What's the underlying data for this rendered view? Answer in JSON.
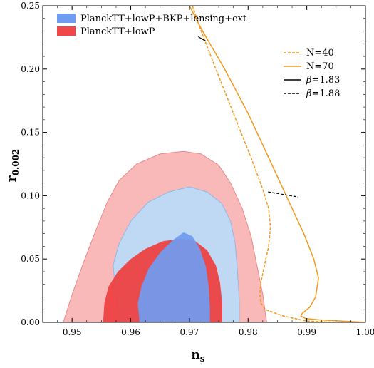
{
  "chart_data": {
    "type": "contour",
    "xlabel": "n_s",
    "ylabel": "r_0.002",
    "xlabel_main": "n",
    "xlabel_sub": "s",
    "ylabel_main": "r",
    "ylabel_sub": "0.002",
    "xlim": [
      0.945,
      1.0
    ],
    "ylim": [
      0.0,
      0.25
    ],
    "x_ticks": [
      0.95,
      0.96,
      0.97,
      0.98,
      0.99,
      1.0
    ],
    "x_tick_labels": [
      "0.95",
      "0.96",
      "0.97",
      "0.98",
      "0.99",
      "1.00"
    ],
    "y_ticks": [
      0.0,
      0.05,
      0.1,
      0.15,
      0.2,
      0.25
    ],
    "y_tick_labels": [
      "0.00",
      "0.05",
      "0.10",
      "0.15",
      "0.20",
      "0.25"
    ],
    "contour_legend": [
      {
        "label": "PlanckTT+lowP+BKP+lensing+ext",
        "color": "#6f9bf0"
      },
      {
        "label": "PlanckTT+lowP",
        "color": "#f04848"
      }
    ],
    "line_legend": [
      {
        "label": "N=40",
        "color": "#f39a1e",
        "dash": "dashed"
      },
      {
        "label": "N=70",
        "color": "#f39a1e",
        "dash": "solid"
      },
      {
        "label": "β=1.83",
        "label_greek": "β",
        "label_rest": "=1.83",
        "color": "#000000",
        "dash": "solid"
      },
      {
        "label": "β=1.88",
        "label_greek": "β",
        "label_rest": "=1.88",
        "color": "#000000",
        "dash": "dashed"
      }
    ],
    "contours": [
      {
        "name": "PlanckTT+lowP",
        "level": "95%",
        "color": "#f9b5b5",
        "stroke": "#e88a8a",
        "points": [
          [
            0.9485,
            0.0
          ],
          [
            0.95,
            0.022
          ],
          [
            0.952,
            0.048
          ],
          [
            0.954,
            0.072
          ],
          [
            0.956,
            0.095
          ],
          [
            0.958,
            0.112
          ],
          [
            0.961,
            0.125
          ],
          [
            0.965,
            0.133
          ],
          [
            0.969,
            0.135
          ],
          [
            0.972,
            0.133
          ],
          [
            0.975,
            0.124
          ],
          [
            0.977,
            0.11
          ],
          [
            0.979,
            0.09
          ],
          [
            0.9805,
            0.068
          ],
          [
            0.9815,
            0.045
          ],
          [
            0.9825,
            0.022
          ],
          [
            0.983,
            0.005
          ],
          [
            0.9832,
            0.0
          ]
        ]
      },
      {
        "name": "PlanckTT+lowP+BKP+lensing+ext",
        "level": "95%",
        "color": "#bcd9f5",
        "stroke": "#8fb8e8",
        "points": [
          [
            0.958,
            0.0
          ],
          [
            0.9575,
            0.02
          ],
          [
            0.957,
            0.045
          ],
          [
            0.958,
            0.062
          ],
          [
            0.96,
            0.08
          ],
          [
            0.963,
            0.095
          ],
          [
            0.9665,
            0.103
          ],
          [
            0.97,
            0.107
          ],
          [
            0.973,
            0.103
          ],
          [
            0.9755,
            0.094
          ],
          [
            0.977,
            0.08
          ],
          [
            0.9778,
            0.062
          ],
          [
            0.9782,
            0.04
          ],
          [
            0.9785,
            0.018
          ],
          [
            0.9785,
            0.0
          ]
        ]
      },
      {
        "name": "PlanckTT+lowP",
        "level": "68%",
        "color": "#ee3e3e",
        "points": [
          [
            0.9553,
            0.0
          ],
          [
            0.9555,
            0.015
          ],
          [
            0.9562,
            0.028
          ],
          [
            0.9578,
            0.04
          ],
          [
            0.96,
            0.05
          ],
          [
            0.9625,
            0.058
          ],
          [
            0.9655,
            0.064
          ],
          [
            0.9685,
            0.066
          ],
          [
            0.971,
            0.064
          ],
          [
            0.973,
            0.057
          ],
          [
            0.9745,
            0.045
          ],
          [
            0.9752,
            0.032
          ],
          [
            0.9756,
            0.015
          ],
          [
            0.9756,
            0.0
          ]
        ]
      },
      {
        "name": "PlanckTT+lowP+BKP+lensing+ext",
        "level": "68%",
        "color": "#6f9bf0",
        "points": [
          [
            0.9615,
            0.0
          ],
          [
            0.9612,
            0.015
          ],
          [
            0.9618,
            0.028
          ],
          [
            0.963,
            0.042
          ],
          [
            0.965,
            0.055
          ],
          [
            0.9672,
            0.065
          ],
          [
            0.969,
            0.071
          ],
          [
            0.9705,
            0.068
          ],
          [
            0.9718,
            0.058
          ],
          [
            0.9728,
            0.044
          ],
          [
            0.9733,
            0.028
          ],
          [
            0.9735,
            0.012
          ],
          [
            0.9735,
            0.0
          ]
        ]
      }
    ],
    "curves": [
      {
        "name": "N=40",
        "color": "#f39a1e",
        "dash": "dashed",
        "points": [
          [
            0.9705,
            0.25
          ],
          [
            0.972,
            0.23
          ],
          [
            0.9745,
            0.2
          ],
          [
            0.9775,
            0.165
          ],
          [
            0.9805,
            0.13
          ],
          [
            0.9825,
            0.105
          ],
          [
            0.9835,
            0.09
          ],
          [
            0.9838,
            0.075
          ],
          [
            0.9835,
            0.06
          ],
          [
            0.9828,
            0.045
          ],
          [
            0.9822,
            0.032
          ],
          [
            0.982,
            0.022
          ],
          [
            0.9822,
            0.015
          ],
          [
            0.983,
            0.01
          ],
          [
            0.986,
            0.005
          ],
          [
            0.99,
            0.001
          ],
          [
            0.995,
            0.0
          ],
          [
            1.0,
            0.0
          ]
        ]
      },
      {
        "name": "N=70",
        "color": "#f39a1e",
        "dash": "solid",
        "points": [
          [
            0.97,
            0.25
          ],
          [
            0.972,
            0.232
          ],
          [
            0.976,
            0.2
          ],
          [
            0.98,
            0.165
          ],
          [
            0.9835,
            0.13
          ],
          [
            0.987,
            0.095
          ],
          [
            0.9895,
            0.07
          ],
          [
            0.9912,
            0.05
          ],
          [
            0.992,
            0.035
          ],
          [
            0.9915,
            0.02
          ],
          [
            0.9905,
            0.012
          ],
          [
            0.9892,
            0.007
          ],
          [
            0.989,
            0.005
          ],
          [
            0.9898,
            0.003
          ],
          [
            0.992,
            0.002
          ],
          [
            0.996,
            0.001
          ],
          [
            1.0,
            0.0
          ]
        ]
      },
      {
        "name": "β=1.83",
        "color": "#000000",
        "dash": "solid",
        "points": [
          [
            0.9715,
            0.2255
          ],
          [
            0.9728,
            0.222
          ]
        ]
      },
      {
        "name": "β=1.88",
        "color": "#000000",
        "dash": "dashed",
        "points": [
          [
            0.9834,
            0.103
          ],
          [
            0.9886,
            0.099
          ]
        ]
      }
    ]
  }
}
